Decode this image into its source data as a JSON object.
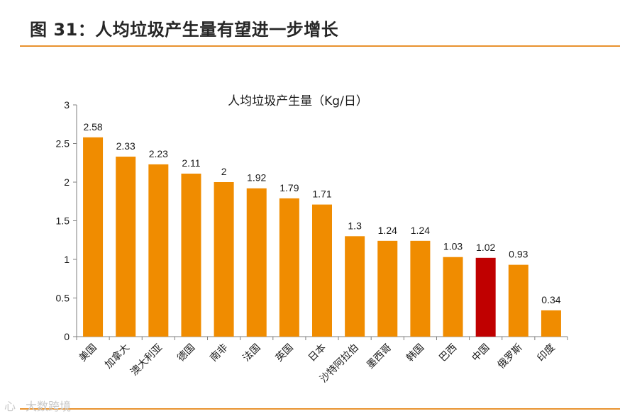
{
  "figure": {
    "title": "图 31：人均垃圾产生量有望进一步增长"
  },
  "colors": {
    "bar": "#f08c00",
    "highlight": "#c00000",
    "rule": "#e8922e",
    "axis": "#7f7f7f",
    "text": "#1a1a1a"
  },
  "watermark": {
    "logo": "心",
    "text": "大数跨境"
  },
  "chart_data": {
    "type": "bar",
    "title": "人均垃圾产生量（Kg/日）",
    "xlabel": "",
    "ylabel": "",
    "ylim": [
      0,
      3
    ],
    "yticks": [
      0,
      0.5,
      1,
      1.5,
      2,
      2.5,
      3
    ],
    "ytick_labels": [
      "0",
      "0.5",
      "1",
      "1.5",
      "2",
      "2.5",
      "3"
    ],
    "grid": false,
    "legend": "none",
    "categories": [
      "美国",
      "加拿大",
      "澳大利亚",
      "德国",
      "南非",
      "法国",
      "英国",
      "日本",
      "沙特阿拉伯",
      "墨西哥",
      "韩国",
      "巴西",
      "中国",
      "俄罗斯",
      "印度"
    ],
    "values": [
      2.58,
      2.33,
      2.23,
      2.11,
      2,
      1.92,
      1.79,
      1.71,
      1.3,
      1.24,
      1.24,
      1.03,
      1.02,
      0.93,
      0.34
    ],
    "value_labels": [
      "2.58",
      "2.33",
      "2.23",
      "2.11",
      "2",
      "1.92",
      "1.79",
      "1.71",
      "1.3",
      "1.24",
      "1.24",
      "1.03",
      "1.02",
      "0.93",
      "0.34"
    ],
    "highlight_category": "中国"
  }
}
